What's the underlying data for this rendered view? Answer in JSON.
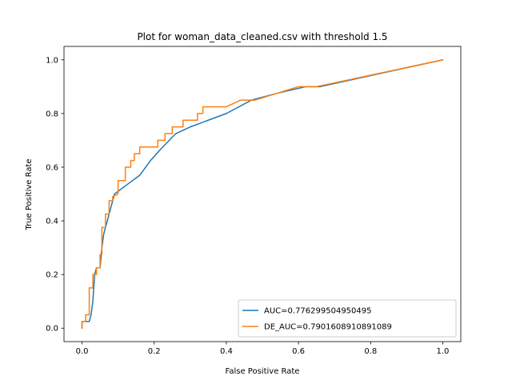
{
  "chart_data": {
    "type": "line",
    "title": "Plot for woman_data_cleaned.csv with threshold 1.5",
    "xlabel": "False Positive Rate",
    "ylabel": "True Positive Rate",
    "xlim": [
      -0.05,
      1.05
    ],
    "ylim": [
      -0.05,
      1.05
    ],
    "xticks": [
      0.0,
      0.2,
      0.4,
      0.6,
      0.8,
      1.0
    ],
    "yticks": [
      0.0,
      0.2,
      0.4,
      0.6,
      0.8,
      1.0
    ],
    "xtick_labels": [
      "0.0",
      "0.2",
      "0.4",
      "0.6",
      "0.8",
      "1.0"
    ],
    "ytick_labels": [
      "0.0",
      "0.2",
      "0.4",
      "0.6",
      "0.8",
      "1.0"
    ],
    "grid": false,
    "legend_position": "lower-right",
    "series": [
      {
        "name": "AUC=0.776299504950495",
        "color": "#1f77b4",
        "x": [
          0.0,
          0.0,
          0.01,
          0.02,
          0.025,
          0.03,
          0.035,
          0.04,
          0.05,
          0.055,
          0.06,
          0.07,
          0.08,
          0.09,
          0.1,
          0.13,
          0.16,
          0.19,
          0.22,
          0.26,
          0.3,
          0.35,
          0.4,
          0.47,
          0.54,
          0.62,
          0.66,
          1.0
        ],
        "y": [
          0.0,
          0.025,
          0.025,
          0.025,
          0.05,
          0.1,
          0.2,
          0.225,
          0.225,
          0.3,
          0.35,
          0.4,
          0.45,
          0.5,
          0.51,
          0.54,
          0.57,
          0.625,
          0.67,
          0.725,
          0.75,
          0.775,
          0.8,
          0.85,
          0.875,
          0.9,
          0.9,
          1.0
        ]
      },
      {
        "name": "DE_AUC=0.7901608910891089",
        "color": "#ff7f0e",
        "x": [
          0.0,
          0.0,
          0.01,
          0.01,
          0.02,
          0.02,
          0.03,
          0.03,
          0.04,
          0.04,
          0.05,
          0.05,
          0.055,
          0.055,
          0.065,
          0.065,
          0.075,
          0.075,
          0.085,
          0.085,
          0.1,
          0.1,
          0.12,
          0.12,
          0.135,
          0.135,
          0.145,
          0.145,
          0.16,
          0.16,
          0.175,
          0.175,
          0.21,
          0.21,
          0.23,
          0.23,
          0.25,
          0.25,
          0.28,
          0.28,
          0.32,
          0.32,
          0.335,
          0.335,
          0.39,
          0.4,
          0.44,
          0.48,
          0.54,
          0.6,
          0.65,
          1.0
        ],
        "y": [
          0.0,
          0.025,
          0.025,
          0.05,
          0.05,
          0.15,
          0.15,
          0.2,
          0.2,
          0.225,
          0.225,
          0.275,
          0.275,
          0.375,
          0.375,
          0.425,
          0.425,
          0.475,
          0.475,
          0.49,
          0.5,
          0.55,
          0.55,
          0.6,
          0.6,
          0.625,
          0.625,
          0.65,
          0.65,
          0.675,
          0.675,
          0.675,
          0.675,
          0.7,
          0.7,
          0.725,
          0.725,
          0.75,
          0.75,
          0.775,
          0.775,
          0.8,
          0.8,
          0.825,
          0.825,
          0.825,
          0.85,
          0.85,
          0.875,
          0.9,
          0.9,
          1.0
        ]
      }
    ]
  }
}
